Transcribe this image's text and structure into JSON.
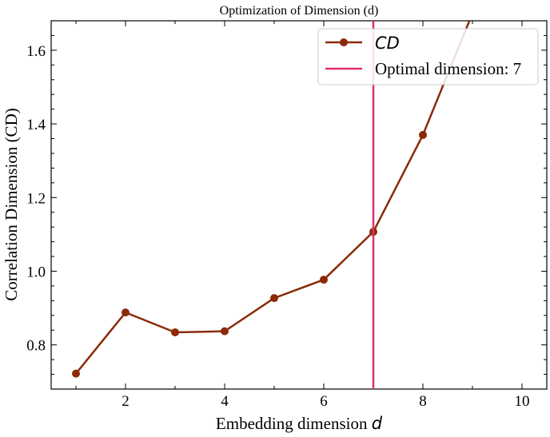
{
  "chart_data": {
    "type": "line",
    "title": "Optimization of Dimension (d)",
    "xlabel_text": "Embedding dimension ",
    "xlabel_var": "d",
    "ylabel": "Correlation Dimension (CD)",
    "xlim": [
      0.5,
      10.5
    ],
    "ylim": [
      0.68,
      1.68
    ],
    "xticks": [
      2,
      4,
      6,
      8,
      10
    ],
    "yticks": [
      0.8,
      1.0,
      1.2,
      1.4,
      1.6
    ],
    "grid": false,
    "legend_position": "top-right",
    "series": [
      {
        "name": "CD",
        "color": "#8B2A06",
        "marker": "circle",
        "x": [
          1,
          2,
          3,
          4,
          5,
          6,
          7,
          8,
          9
        ],
        "y": [
          0.722,
          0.888,
          0.834,
          0.837,
          0.927,
          0.977,
          1.107,
          1.37,
          1.7
        ]
      }
    ],
    "vline": {
      "x": 7,
      "label": "Optimal dimension: 7",
      "color": "#E0306A"
    }
  }
}
